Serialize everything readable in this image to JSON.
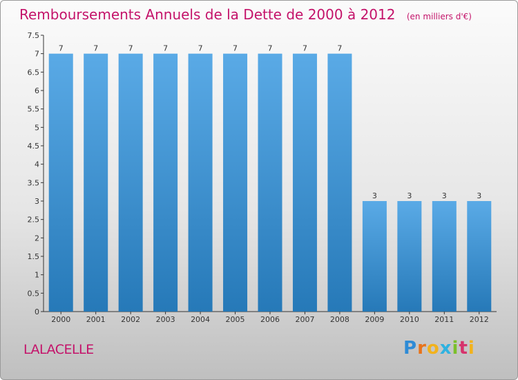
{
  "title": "Remboursements Annuels de la Dette de 2000 à 2012",
  "unit": "(en milliers d'€)",
  "commune": "LALACELLE",
  "logo": {
    "text": "Proxiti",
    "colors": [
      "#2e8bd6",
      "#e8731a",
      "#f2b21c",
      "#2fb2e0",
      "#7bbf2a",
      "#d6336c",
      "#f2b21c"
    ]
  },
  "colors": {
    "title": "#c4136a",
    "bar_light": "#5aaae6",
    "bar_dark": "#2679b8",
    "axis": "#333333"
  },
  "chart_data": {
    "type": "bar",
    "title": "Remboursements Annuels de la Dette de 2000 à 2012",
    "ylabel": "en milliers d'€",
    "xlabel": "",
    "categories": [
      "2000",
      "2001",
      "2002",
      "2003",
      "2004",
      "2005",
      "2006",
      "2007",
      "2008",
      "2009",
      "2010",
      "2011",
      "2012"
    ],
    "values": [
      7,
      7,
      7,
      7,
      7,
      7,
      7,
      7,
      7,
      3,
      3,
      3,
      3
    ],
    "data_labels": [
      "7",
      "7",
      "7",
      "7",
      "7",
      "7",
      "7",
      "7",
      "7",
      "3",
      "3",
      "3",
      "3"
    ],
    "ylim": [
      0,
      7.5
    ],
    "yticks": [
      "0",
      "0.5",
      "1",
      "1.5",
      "2",
      "2.5",
      "3",
      "3.5",
      "4",
      "4.5",
      "5",
      "5.5",
      "6",
      "6.5",
      "7",
      "7.5"
    ],
    "grid": false,
    "legend": "none"
  }
}
